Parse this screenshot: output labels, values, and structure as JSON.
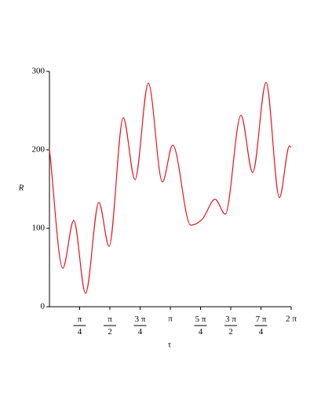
{
  "chart_data": {
    "type": "line",
    "xlabel": "τ",
    "ylabel": "R",
    "x": [
      0,
      0.347,
      0.632,
      0.938,
      1.285,
      1.55,
      1.918,
      2.224,
      2.57,
      2.937,
      3.203,
      3.67,
      3.978,
      4.305,
      4.57,
      4.977,
      5.283,
      5.63,
      5.977,
      6.24,
      6.283
    ],
    "series": [
      {
        "name": "R",
        "color": "#e8141e",
        "values": [
          201,
          49,
          110,
          17,
          133,
          77,
          241,
          162,
          285,
          159,
          206,
          104,
          112,
          137,
          118,
          244,
          171,
          286,
          139,
          205,
          203
        ]
      }
    ],
    "xlim": [
      0,
      6.283
    ],
    "ylim": [
      0,
      300
    ],
    "xticks": [
      {
        "value": 0.785,
        "label": "π/4"
      },
      {
        "value": 1.571,
        "label": "π/2"
      },
      {
        "value": 2.356,
        "label": "3 π/4"
      },
      {
        "value": 3.142,
        "label": "π"
      },
      {
        "value": 3.927,
        "label": "5 π/4"
      },
      {
        "value": 4.712,
        "label": "3 π/2"
      },
      {
        "value": 5.498,
        "label": "7 π/4"
      },
      {
        "value": 6.283,
        "label": "2 π"
      }
    ],
    "yticks": [
      0,
      100,
      200,
      300
    ]
  }
}
